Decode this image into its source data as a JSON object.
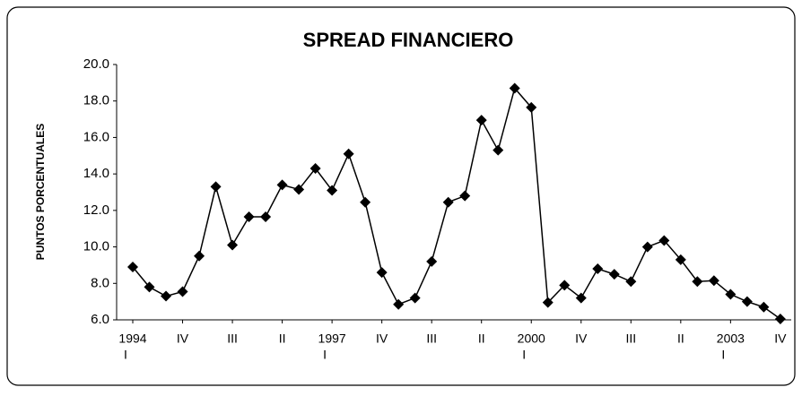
{
  "chart_data": {
    "type": "line",
    "title": "SPREAD FINANCIERO",
    "y_label": "PUNTOS PORCENTUALES",
    "categories": [
      "I",
      null,
      null,
      "IV",
      null,
      null,
      "III",
      null,
      null,
      "II",
      null,
      null,
      "I",
      null,
      null,
      "IV",
      null,
      null,
      "III",
      null,
      null,
      "II",
      null,
      null,
      "I",
      null,
      null,
      "IV",
      null,
      null,
      "III",
      null,
      null,
      "II",
      null,
      null,
      "I",
      null,
      null,
      "IV"
    ],
    "category_years": [
      "1994",
      null,
      null,
      null,
      null,
      null,
      null,
      null,
      null,
      null,
      null,
      null,
      "1997",
      null,
      null,
      null,
      null,
      null,
      null,
      null,
      null,
      null,
      null,
      null,
      "2000",
      null,
      null,
      null,
      null,
      null,
      null,
      null,
      null,
      null,
      null,
      null,
      "2003",
      null,
      null,
      null
    ],
    "values": [
      8.9,
      7.8,
      7.3,
      7.55,
      9.5,
      13.3,
      10.1,
      11.65,
      11.65,
      13.4,
      13.15,
      14.3,
      13.1,
      15.1,
      12.45,
      8.6,
      6.85,
      7.2,
      9.2,
      12.45,
      12.8,
      16.95,
      15.3,
      18.7,
      17.65,
      6.95,
      7.9,
      7.2,
      8.8,
      8.5,
      8.1,
      10.0,
      10.35,
      9.3,
      8.1,
      8.15,
      7.4,
      7.0,
      6.7,
      6.05
    ],
    "color": "#000000",
    "ylim": [
      6,
      20
    ],
    "yticks": [
      {
        "value": 6,
        "label": "6.0"
      },
      {
        "value": 8,
        "label": "8.0"
      },
      {
        "value": 10,
        "label": "10.0"
      },
      {
        "value": 12,
        "label": "12.0"
      },
      {
        "value": 14,
        "label": "14.0"
      },
      {
        "value": 16,
        "label": "16.0"
      },
      {
        "value": 18,
        "label": "18.0"
      },
      {
        "value": 20,
        "label": "20.0"
      }
    ],
    "grid": false
  }
}
